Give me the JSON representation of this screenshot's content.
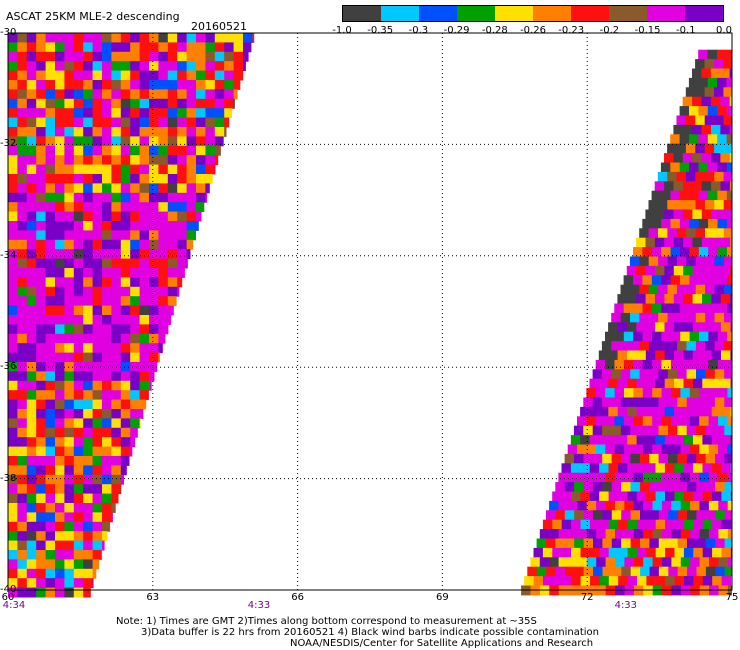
{
  "header": {
    "product": "ASCAT 25KM MLE-2 descending",
    "date": "20160521"
  },
  "colorbar": {
    "colors": [
      "#404040",
      "#00c8ff",
      "#0050ff",
      "#00a000",
      "#ffe000",
      "#ff8000",
      "#ff1010",
      "#8b5a2b",
      "#e000e0",
      "#7a00c8"
    ],
    "labels": [
      "-1.0",
      "-0.35",
      "-0.3",
      "-0.29",
      "-0.28",
      "-0.26",
      "-0.23",
      "-0.2",
      "-0.15",
      "-0.1",
      "0.0"
    ]
  },
  "map": {
    "lat_range": [
      -40,
      -30
    ],
    "lon_range": [
      60,
      75
    ],
    "lat_ticks": [
      "-30",
      "-32",
      "-34",
      "-36",
      "-38",
      "-40"
    ],
    "lon_ticks": [
      "60",
      "63",
      "66",
      "69",
      "72",
      "75"
    ],
    "times": [
      {
        "lon": 60,
        "label": "4:34"
      },
      {
        "lon": 65.2,
        "label": "4:33"
      },
      {
        "lon": 72.8,
        "label": "4:33"
      }
    ],
    "swaths": [
      {
        "name": "west",
        "lat_top": -30,
        "lat_bottom": -40,
        "lon_left": 60,
        "lon_right_top": 65.1,
        "lon_right_bottom": 61.7
      },
      {
        "name": "east",
        "lat_top": -30.3,
        "lat_bottom": -40,
        "lon_right": 75,
        "lon_left_top": 74.3,
        "lon_left_bottom": 70.6
      }
    ]
  },
  "notes": {
    "line1": "Note: 1) Times are GMT 2)Times along bottom correspond to measurement at ~35S",
    "line2": "3)Data buffer is 22 hrs from 20160521 4) Black wind barbs indicate possible contamination",
    "line3": "NOAA/NESDIS/Center for Satellite Applications and Research"
  }
}
